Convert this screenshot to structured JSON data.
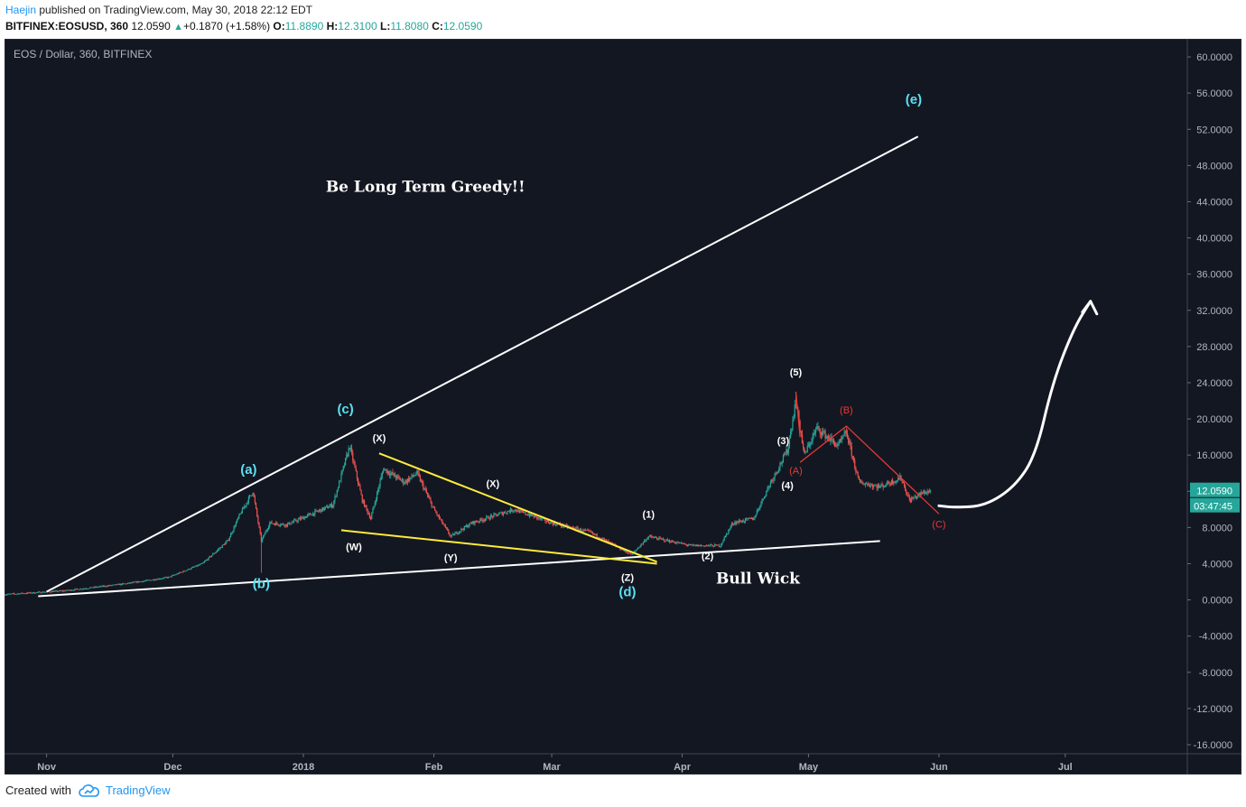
{
  "header": {
    "author": "Haejin",
    "published_text": "published on TradingView.com, May 30, 2018 22:12 EDT",
    "symbol": "BITFINEX:EOSUSD, 360",
    "last": "12.0590",
    "change": "+0.1870 (+1.58%)",
    "o_label": "O:",
    "o_value": "11.8890",
    "h_label": "H:",
    "h_value": "12.3100",
    "l_label": "L:",
    "l_value": "11.8080",
    "c_label": "C:",
    "c_value": "12.0590"
  },
  "footer": {
    "created_with": "Created with",
    "brand": "TradingView"
  },
  "colors": {
    "background": "#131722",
    "text": "#b2b5be",
    "up": "#26a69a",
    "down": "#ef5350",
    "cyan_label": "#5ce1f0",
    "yellow_line": "#ffeb3b",
    "red_line": "#e53935",
    "white": "#ffffff"
  },
  "chart_data": {
    "type": "candlestick",
    "title": "EOS / Dollar, 360, BITFINEX",
    "ylim": [
      -17,
      62
    ],
    "y_ticks": [
      "60.0000",
      "56.0000",
      "52.0000",
      "48.0000",
      "44.0000",
      "40.0000",
      "36.0000",
      "32.0000",
      "28.0000",
      "24.0000",
      "20.0000",
      "16.0000",
      "12.0000",
      "8.0000",
      "4.0000",
      "0.0000",
      "-4.0000",
      "-8.0000",
      "-12.0000",
      "-16.0000"
    ],
    "x_ticks": [
      {
        "label": "Nov",
        "date": "2017-11-01"
      },
      {
        "label": "Dec",
        "date": "2017-12-01"
      },
      {
        "label": "2018",
        "date": "2018-01-01"
      },
      {
        "label": "Feb",
        "date": "2018-02-01"
      },
      {
        "label": "Mar",
        "date": "2018-03-01"
      },
      {
        "label": "Apr",
        "date": "2018-04-01"
      },
      {
        "label": "May",
        "date": "2018-05-01"
      },
      {
        "label": "Jun",
        "date": "2018-06-01"
      },
      {
        "label": "Jul",
        "date": "2018-07-01"
      }
    ],
    "xlim": [
      "2017-10-22",
      "2018-07-30"
    ],
    "price_path": [
      {
        "date": "2017-10-22",
        "price": 0.6
      },
      {
        "date": "2017-11-05",
        "price": 1.0
      },
      {
        "date": "2017-11-20",
        "price": 1.8
      },
      {
        "date": "2017-11-30",
        "price": 2.5
      },
      {
        "date": "2017-12-08",
        "price": 4.0
      },
      {
        "date": "2017-12-14",
        "price": 6.5
      },
      {
        "date": "2017-12-17",
        "price": 9.5
      },
      {
        "date": "2017-12-20",
        "price": 12.0
      },
      {
        "date": "2017-12-22",
        "price": 6.5
      },
      {
        "date": "2017-12-24",
        "price": 8.5
      },
      {
        "date": "2017-12-28",
        "price": 8.3
      },
      {
        "date": "2018-01-03",
        "price": 9.5
      },
      {
        "date": "2018-01-08",
        "price": 10.5
      },
      {
        "date": "2018-01-12",
        "price": 17.0
      },
      {
        "date": "2018-01-15",
        "price": 11.0
      },
      {
        "date": "2018-01-17",
        "price": 9.0
      },
      {
        "date": "2018-01-20",
        "price": 14.5
      },
      {
        "date": "2018-01-25",
        "price": 13.0
      },
      {
        "date": "2018-01-28",
        "price": 14.0
      },
      {
        "date": "2018-02-01",
        "price": 10.0
      },
      {
        "date": "2018-02-05",
        "price": 7.0
      },
      {
        "date": "2018-02-10",
        "price": 8.5
      },
      {
        "date": "2018-02-20",
        "price": 10.0
      },
      {
        "date": "2018-03-01",
        "price": 8.5
      },
      {
        "date": "2018-03-10",
        "price": 7.5
      },
      {
        "date": "2018-03-20",
        "price": 5.0
      },
      {
        "date": "2018-03-24",
        "price": 7.0
      },
      {
        "date": "2018-04-03",
        "price": 6.0
      },
      {
        "date": "2018-04-10",
        "price": 6.0
      },
      {
        "date": "2018-04-13",
        "price": 8.5
      },
      {
        "date": "2018-04-18",
        "price": 9.0
      },
      {
        "date": "2018-04-22",
        "price": 13.0
      },
      {
        "date": "2018-04-26",
        "price": 16.5
      },
      {
        "date": "2018-04-28",
        "price": 22.0
      },
      {
        "date": "2018-04-30",
        "price": 16.0
      },
      {
        "date": "2018-05-03",
        "price": 19.0
      },
      {
        "date": "2018-05-08",
        "price": 17.0
      },
      {
        "date": "2018-05-10",
        "price": 18.5
      },
      {
        "date": "2018-05-13",
        "price": 13.0
      },
      {
        "date": "2018-05-18",
        "price": 12.5
      },
      {
        "date": "2018-05-23",
        "price": 13.5
      },
      {
        "date": "2018-05-25",
        "price": 11.0
      },
      {
        "date": "2018-05-28",
        "price": 11.8
      },
      {
        "date": "2018-05-30",
        "price": 12.059
      }
    ],
    "wicks": [
      {
        "date": "2017-12-22",
        "low": 3.0
      },
      {
        "date": "2018-04-28",
        "high": 23.0
      }
    ],
    "last_price_label": "12.0590",
    "countdown_label": "03:47:45",
    "trendlines": [
      {
        "name": "upper-trendline",
        "color": "white",
        "points": [
          {
            "date": "2017-11-01",
            "price": 0.9
          },
          {
            "date": "2018-05-27",
            "price": 51.2
          }
        ]
      },
      {
        "name": "lower-trendline",
        "color": "white",
        "points": [
          {
            "date": "2017-10-30",
            "price": 0.4
          },
          {
            "date": "2018-05-18",
            "price": 6.5
          }
        ]
      },
      {
        "name": "triangle-top",
        "color": "yellow",
        "points": [
          {
            "date": "2018-01-19",
            "price": 16.2
          },
          {
            "date": "2018-03-26",
            "price": 4.2
          }
        ]
      },
      {
        "name": "triangle-bottom",
        "color": "yellow",
        "points": [
          {
            "date": "2018-01-10",
            "price": 7.7
          },
          {
            "date": "2018-03-26",
            "price": 4.0
          }
        ]
      },
      {
        "name": "red-wave-1",
        "color": "red",
        "points": [
          {
            "date": "2018-04-29",
            "price": 15.2
          },
          {
            "date": "2018-05-10",
            "price": 19.2
          },
          {
            "date": "2018-06-01",
            "price": 9.5
          }
        ]
      },
      {
        "name": "red-wave-mark",
        "color": "red",
        "points": [
          {
            "date": "2018-04-28",
            "price": 23.0
          },
          {
            "date": "2018-04-29",
            "price": 18.0
          }
        ]
      }
    ],
    "projection_path": [
      {
        "date": "2018-06-01",
        "price": 10.4
      },
      {
        "date": "2018-06-05",
        "price": 10.2
      },
      {
        "date": "2018-06-12",
        "price": 10.4
      },
      {
        "date": "2018-06-19",
        "price": 12.5
      },
      {
        "date": "2018-06-24",
        "price": 16.0
      },
      {
        "date": "2018-06-28",
        "price": 24.0
      },
      {
        "date": "2018-07-03",
        "price": 30.0
      },
      {
        "date": "2018-07-07",
        "price": 33.0
      }
    ],
    "annotations": [
      {
        "text": "(a)",
        "date": "2017-12-19",
        "price": 13.9,
        "color": "cyan"
      },
      {
        "text": "(b)",
        "date": "2017-12-22",
        "price": 1.3,
        "color": "cyan"
      },
      {
        "text": "(c)",
        "date": "2018-01-11",
        "price": 20.6,
        "color": "cyan"
      },
      {
        "text": "(d)",
        "date": "2018-03-19",
        "price": 0.4,
        "color": "cyan"
      },
      {
        "text": "(e)",
        "date": "2018-05-26",
        "price": 54.8,
        "color": "cyan"
      },
      {
        "text": "(X)",
        "date": "2018-01-19",
        "price": 17.5,
        "color": "white"
      },
      {
        "text": "(W)",
        "date": "2018-01-13",
        "price": 5.5,
        "color": "white"
      },
      {
        "text": "(X)",
        "date": "2018-02-15",
        "price": 12.5,
        "color": "white"
      },
      {
        "text": "(Y)",
        "date": "2018-02-05",
        "price": 4.3,
        "color": "white"
      },
      {
        "text": "(Z)",
        "date": "2018-03-19",
        "price": 2.1,
        "color": "white"
      },
      {
        "text": "(1)",
        "date": "2018-03-24",
        "price": 9.1,
        "color": "white"
      },
      {
        "text": "(2)",
        "date": "2018-04-07",
        "price": 4.5,
        "color": "white"
      },
      {
        "text": "(3)",
        "date": "2018-04-25",
        "price": 17.2,
        "color": "white"
      },
      {
        "text": "(4)",
        "date": "2018-04-26",
        "price": 12.3,
        "color": "white"
      },
      {
        "text": "(5)",
        "date": "2018-04-28",
        "price": 24.8,
        "color": "white"
      },
      {
        "text": "(A)",
        "date": "2018-04-28",
        "price": 13.9,
        "color": "red"
      },
      {
        "text": "(B)",
        "date": "2018-05-10",
        "price": 20.6,
        "color": "red"
      },
      {
        "text": "(C)",
        "date": "2018-06-01",
        "price": 8.0,
        "color": "red"
      },
      {
        "text": "Be Long Term Greedy!!",
        "date": "2018-01-30",
        "price": 45.1,
        "color": "white",
        "bold": true,
        "size": "large"
      },
      {
        "text": "Bull Wick",
        "date": "2018-04-19",
        "price": 1.8,
        "color": "white",
        "bold": true,
        "size": "large"
      }
    ]
  }
}
